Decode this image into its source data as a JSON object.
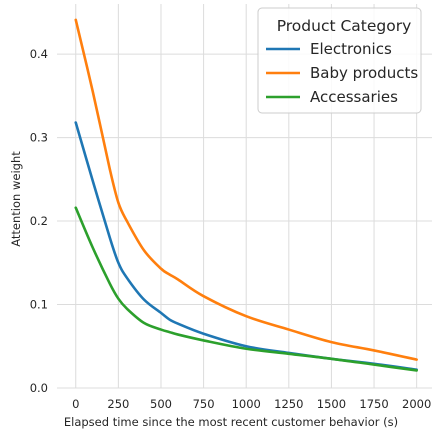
{
  "chart_data": {
    "type": "line",
    "title": "",
    "xlabel": "Elapsed time since the most recent customer behavior (s)",
    "ylabel": "Attention weight",
    "xlim": [
      -110,
      2090
    ],
    "ylim": [
      0.0,
      0.46
    ],
    "xticks": [
      0,
      250,
      500,
      750,
      1000,
      1250,
      1500,
      1750,
      2000
    ],
    "yticks": [
      0.0,
      0.1,
      0.2,
      0.3,
      0.4
    ],
    "xtick_labels": [
      "0",
      "250",
      "500",
      "750",
      "1000",
      "1250",
      "1500",
      "1750",
      "2000"
    ],
    "ytick_labels": [
      "0.0",
      "0.1",
      "0.2",
      "0.3",
      "0.4"
    ],
    "grid": true,
    "legend": {
      "title": "Product Category",
      "position": "top-right"
    },
    "series": [
      {
        "name": "Electronics",
        "color": "#1f77b4",
        "x": [
          0,
          100,
          200,
          250,
          300,
          400,
          500,
          550,
          600,
          750,
          1000,
          1250,
          1500,
          1750,
          2000
        ],
        "y": [
          0.318,
          0.248,
          0.18,
          0.15,
          0.132,
          0.106,
          0.09,
          0.082,
          0.077,
          0.065,
          0.05,
          0.042,
          0.035,
          0.029,
          0.022
        ]
      },
      {
        "name": "Baby products",
        "color": "#ff7f0e",
        "x": [
          0,
          100,
          200,
          250,
          300,
          400,
          500,
          550,
          600,
          750,
          1000,
          1250,
          1500,
          1750,
          2000
        ],
        "y": [
          0.441,
          0.355,
          0.262,
          0.222,
          0.2,
          0.165,
          0.143,
          0.136,
          0.13,
          0.11,
          0.086,
          0.07,
          0.055,
          0.045,
          0.034
        ]
      },
      {
        "name": "Accessaries",
        "color": "#2ca02c",
        "x": [
          0,
          100,
          200,
          250,
          300,
          400,
          500,
          550,
          600,
          750,
          1000,
          1250,
          1500,
          1750,
          2000
        ],
        "y": [
          0.216,
          0.168,
          0.125,
          0.107,
          0.095,
          0.078,
          0.07,
          0.067,
          0.064,
          0.057,
          0.047,
          0.041,
          0.035,
          0.028,
          0.021
        ]
      }
    ]
  }
}
